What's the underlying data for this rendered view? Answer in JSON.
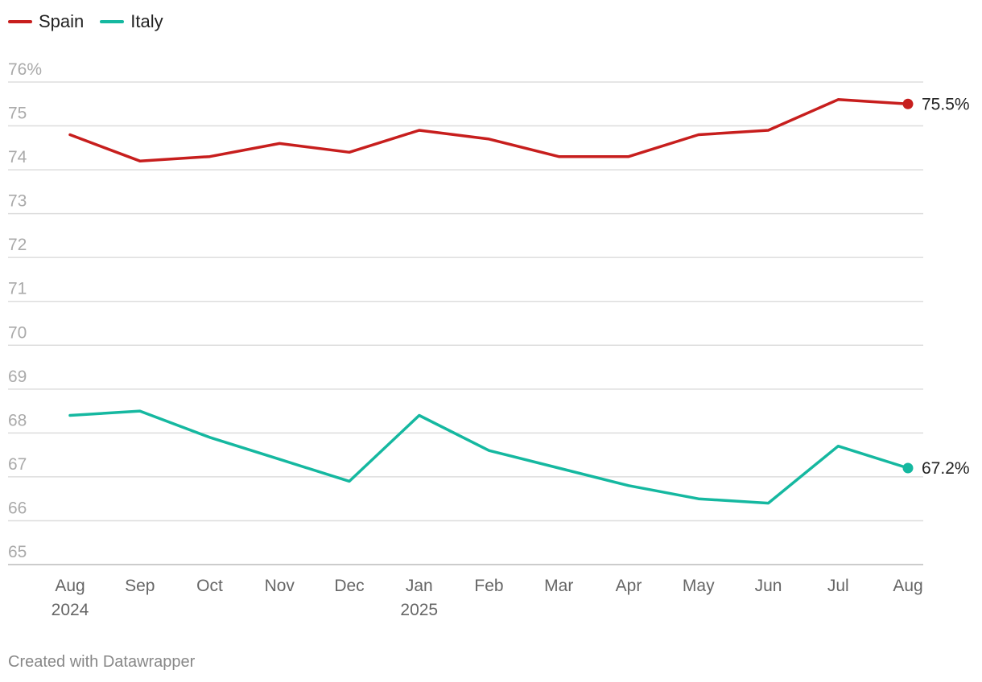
{
  "chart_data": {
    "type": "line",
    "categories": [
      "Aug 2024",
      "Sep",
      "Oct",
      "Nov",
      "Dec",
      "Jan 2025",
      "Feb",
      "Mar",
      "Apr",
      "May",
      "Jun",
      "Jul",
      "Aug"
    ],
    "x_tick_labels": [
      {
        "line1": "Aug",
        "line2": "2024"
      },
      {
        "line1": "Sep",
        "line2": ""
      },
      {
        "line1": "Oct",
        "line2": ""
      },
      {
        "line1": "Nov",
        "line2": ""
      },
      {
        "line1": "Dec",
        "line2": ""
      },
      {
        "line1": "Jan",
        "line2": "2025"
      },
      {
        "line1": "Feb",
        "line2": ""
      },
      {
        "line1": "Mar",
        "line2": ""
      },
      {
        "line1": "Apr",
        "line2": ""
      },
      {
        "line1": "May",
        "line2": ""
      },
      {
        "line1": "Jun",
        "line2": ""
      },
      {
        "line1": "Jul",
        "line2": ""
      },
      {
        "line1": "Aug",
        "line2": ""
      }
    ],
    "series": [
      {
        "name": "Spain",
        "color": "#c71e1d",
        "values": [
          74.8,
          74.2,
          74.3,
          74.6,
          74.4,
          74.9,
          74.7,
          74.3,
          74.3,
          74.8,
          74.9,
          75.6,
          75.5
        ],
        "end_label": "75.5%"
      },
      {
        "name": "Italy",
        "color": "#15b8a0",
        "values": [
          68.4,
          68.5,
          67.9,
          67.4,
          66.9,
          68.4,
          67.6,
          67.2,
          66.8,
          66.5,
          66.4,
          67.7,
          67.2
        ],
        "end_label": "67.2%"
      }
    ],
    "ylim": [
      65,
      76
    ],
    "y_ticks": [
      {
        "value": 76,
        "label": "76%"
      },
      {
        "value": 75,
        "label": "75"
      },
      {
        "value": 74,
        "label": "74"
      },
      {
        "value": 73,
        "label": "73"
      },
      {
        "value": 72,
        "label": "72"
      },
      {
        "value": 71,
        "label": "71"
      },
      {
        "value": 70,
        "label": "70"
      },
      {
        "value": 69,
        "label": "69"
      },
      {
        "value": 68,
        "label": "68"
      },
      {
        "value": 67,
        "label": "67"
      },
      {
        "value": 66,
        "label": "66"
      },
      {
        "value": 65,
        "label": "65"
      }
    ],
    "title": "",
    "xlabel": "",
    "ylabel": "",
    "grid": true,
    "legend_position": "top-left"
  },
  "footer": {
    "credit": "Created with Datawrapper"
  },
  "colors": {
    "grid": "#dddddd",
    "tick_text": "#aaaaaa",
    "x_tick_text": "#666666",
    "end_label_text": "#222222"
  }
}
